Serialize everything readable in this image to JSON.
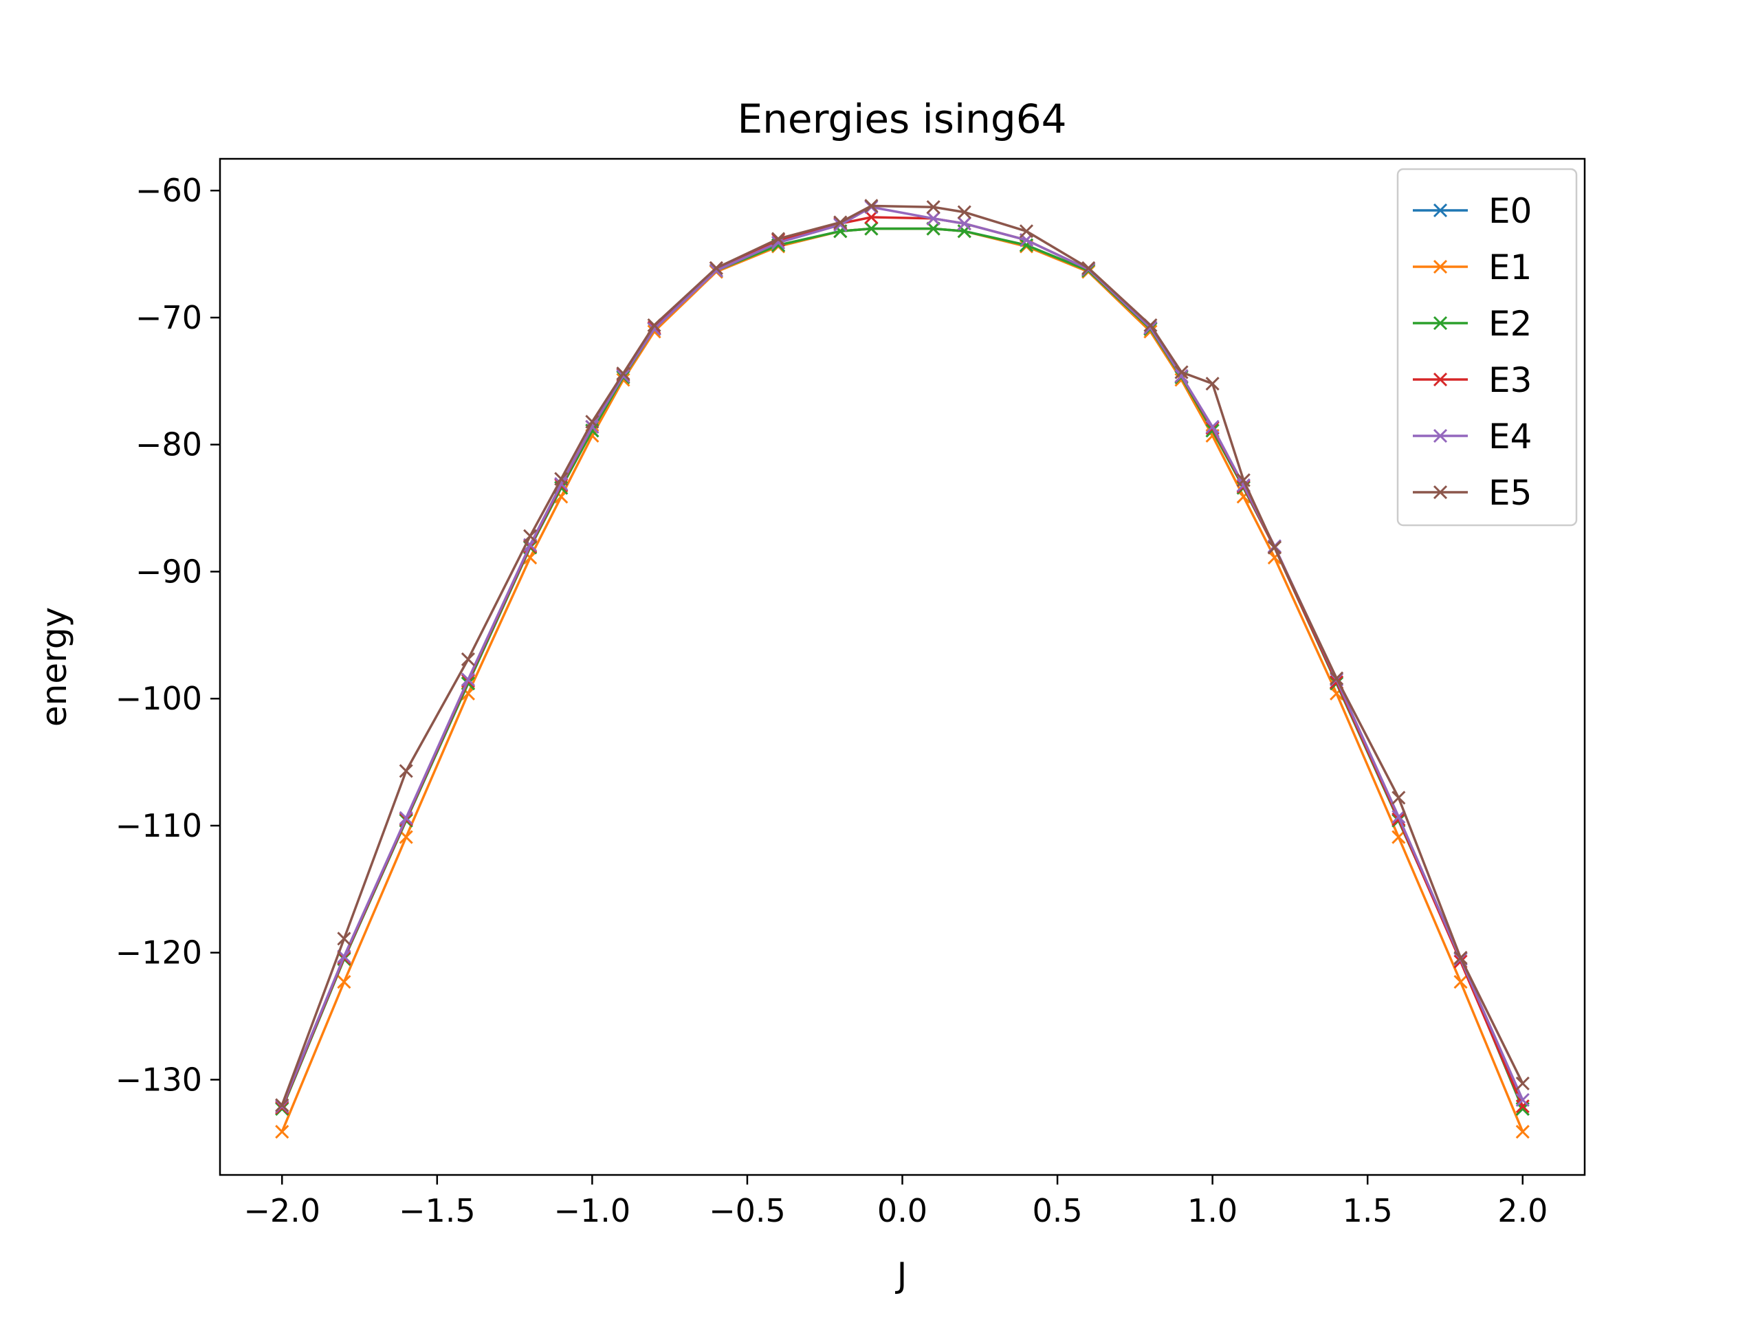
{
  "chart_data": {
    "type": "line",
    "title": "Energies ising64",
    "xlabel": "J",
    "ylabel": "energy",
    "xlim": [
      -2.2,
      2.2
    ],
    "ylim": [
      -137.5,
      -57.5
    ],
    "xticks": [
      -2.0,
      -1.5,
      -1.0,
      -0.5,
      0.0,
      0.5,
      1.0,
      1.5,
      2.0
    ],
    "xtick_labels": [
      "−2.0",
      "−1.5",
      "−1.0",
      "−0.5",
      "0.0",
      "0.5",
      "1.0",
      "1.5",
      "2.0"
    ],
    "yticks": [
      -60,
      -70,
      -80,
      -90,
      -100,
      -110,
      -120,
      -130
    ],
    "ytick_labels": [
      "−60",
      "−70",
      "−80",
      "−90",
      "−100",
      "−110",
      "−120",
      "−130"
    ],
    "grid": false,
    "legend_position": "top-right",
    "marker": "x",
    "x": [
      -2.0,
      -1.8,
      -1.6,
      -1.4,
      -1.2,
      -1.1,
      -1.0,
      -0.9,
      -0.8,
      -0.6,
      -0.4,
      -0.2,
      -0.1,
      0.1,
      0.2,
      0.4,
      0.6,
      0.8,
      0.9,
      1.0,
      1.1,
      1.2,
      1.4,
      1.6,
      1.8,
      2.0
    ],
    "series": [
      {
        "name": "E0",
        "color": "#1f77b4",
        "values": [
          -132.3,
          -120.5,
          -109.6,
          -98.8,
          -88.1,
          -83.4,
          -78.9,
          -74.7,
          -70.9,
          -66.3,
          -64.3,
          -63.2,
          -63.0,
          -63.0,
          -63.2,
          -64.3,
          -66.3,
          -70.9,
          -74.7,
          -78.9,
          -83.4,
          -88.1,
          -98.8,
          -109.6,
          -120.5,
          -132.3
        ]
      },
      {
        "name": "E1",
        "color": "#ff7f0e",
        "values": [
          -134.1,
          -122.3,
          -110.9,
          -99.6,
          -88.9,
          -84.1,
          -79.3,
          -74.9,
          -71.1,
          -66.4,
          -64.4,
          -63.2,
          -63.0,
          -63.0,
          -63.2,
          -64.4,
          -66.4,
          -71.1,
          -74.9,
          -79.3,
          -84.1,
          -88.9,
          -99.6,
          -110.9,
          -122.3,
          -134.1
        ]
      },
      {
        "name": "E2",
        "color": "#2ca02c",
        "values": [
          -132.3,
          -120.5,
          -109.6,
          -98.8,
          -88.1,
          -83.4,
          -78.9,
          -74.7,
          -70.9,
          -66.3,
          -64.3,
          -63.2,
          -63.0,
          -63.0,
          -63.2,
          -64.3,
          -66.3,
          -70.9,
          -74.7,
          -78.9,
          -83.4,
          -88.1,
          -98.8,
          -109.6,
          -120.5,
          -132.3
        ]
      },
      {
        "name": "E3",
        "color": "#d62728",
        "values": [
          -132.2,
          -120.4,
          -109.5,
          -98.6,
          -88.0,
          -83.2,
          -78.6,
          -74.5,
          -70.8,
          -66.1,
          -63.9,
          -62.6,
          -62.1,
          -62.2,
          -62.6,
          -63.9,
          -66.2,
          -70.8,
          -74.6,
          -78.7,
          -83.3,
          -88.1,
          -98.7,
          -109.5,
          -120.7,
          -132.1
        ]
      },
      {
        "name": "E4",
        "color": "#9467bd",
        "values": [
          -132.1,
          -120.3,
          -109.4,
          -98.5,
          -87.9,
          -83.1,
          -78.6,
          -74.6,
          -70.9,
          -66.3,
          -64.1,
          -62.7,
          -61.3,
          -62.2,
          -62.6,
          -63.9,
          -66.2,
          -70.8,
          -74.6,
          -78.6,
          -83.2,
          -88.0,
          -98.5,
          -109.3,
          -120.5,
          -131.6
        ]
      },
      {
        "name": "E5",
        "color": "#8c564b",
        "values": [
          -132.0,
          -118.9,
          -105.7,
          -96.9,
          -87.2,
          -82.7,
          -78.2,
          -74.4,
          -70.6,
          -66.1,
          -63.8,
          -62.5,
          -61.2,
          -61.3,
          -61.7,
          -63.2,
          -66.1,
          -70.6,
          -74.3,
          -75.2,
          -82.8,
          -88.1,
          -98.4,
          -107.8,
          -120.4,
          -130.3
        ]
      }
    ]
  }
}
